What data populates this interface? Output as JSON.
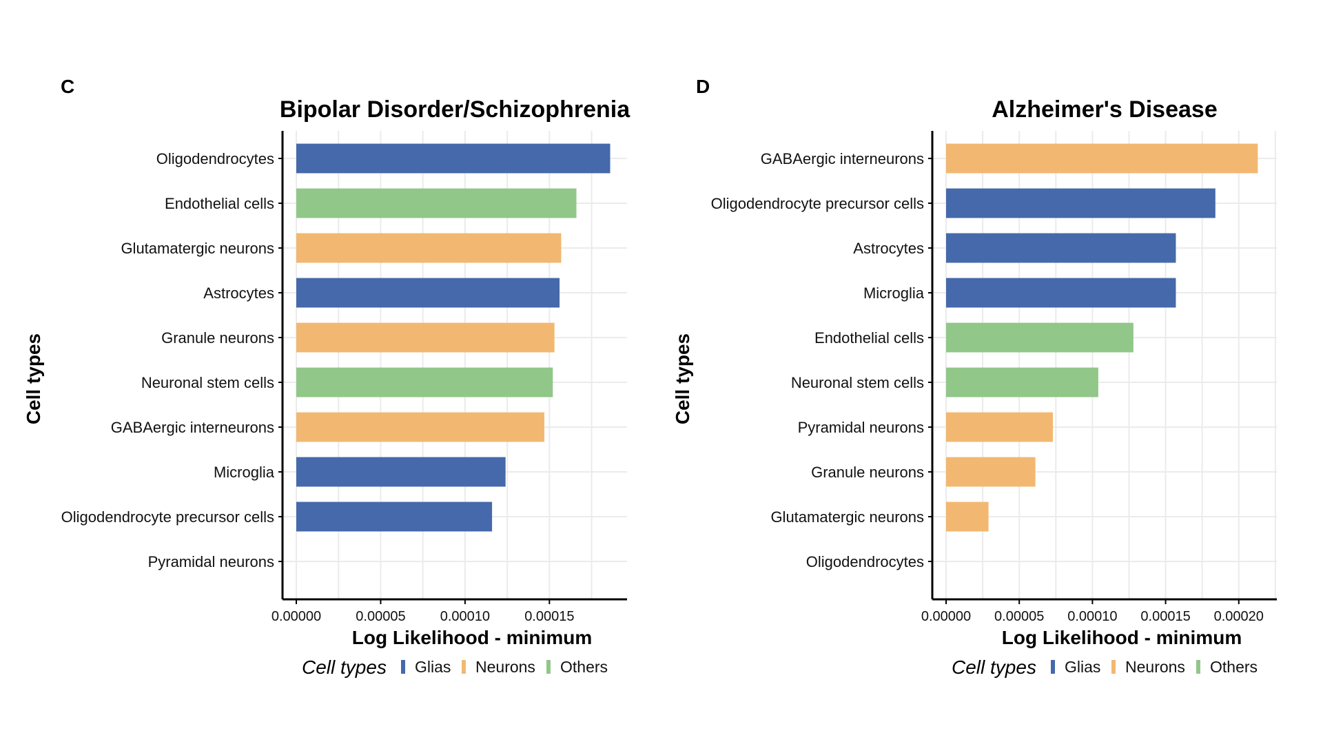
{
  "colors": {
    "Glias": "#4569AA",
    "Neurons": "#F2B872",
    "Others": "#91C788"
  },
  "chart_data": [
    {
      "panel": "C",
      "type": "bar",
      "orientation": "horizontal",
      "title": "Bipolar Disorder/Schizophrenia",
      "xlabel": "Log Likelihood - minimum",
      "ylabel": "Cell types",
      "xlim": [
        0,
        0.000196
      ],
      "xticks": [
        0,
        5e-05,
        0.0001,
        0.00015
      ],
      "xtick_labels": [
        "0.00000",
        "0.00005",
        "0.00010",
        "0.00015"
      ],
      "grid": true,
      "legend": {
        "title": "Cell types",
        "position": "bottom",
        "entries": [
          "Glias",
          "Neurons",
          "Others"
        ]
      },
      "categories": [
        "Oligodendrocytes",
        "Endothelial cells",
        "Glutamatergic neurons",
        "Astrocytes",
        "Granule neurons",
        "Neuronal stem cells",
        "GABAergic interneurons",
        "Microglia",
        "Oligodendrocyte precursor cells",
        "Pyramidal neurons"
      ],
      "values": [
        0.000186,
        0.000166,
        0.000157,
        0.000156,
        0.000153,
        0.000152,
        0.000147,
        0.000124,
        0.000116,
        0.0
      ],
      "groups": [
        "Glias",
        "Others",
        "Neurons",
        "Glias",
        "Neurons",
        "Others",
        "Neurons",
        "Glias",
        "Glias",
        "Neurons"
      ]
    },
    {
      "panel": "D",
      "type": "bar",
      "orientation": "horizontal",
      "title": "Alzheimer's Disease",
      "xlabel": "Log Likelihood - minimum",
      "ylabel": "Cell types",
      "xlim": [
        0,
        0.000226
      ],
      "xticks": [
        0,
        5e-05,
        0.0001,
        0.00015,
        0.0002
      ],
      "xtick_labels": [
        "0.00000",
        "0.00005",
        "0.00010",
        "0.00015",
        "0.00020"
      ],
      "grid": true,
      "legend": {
        "title": "Cell types",
        "position": "bottom",
        "entries": [
          "Glias",
          "Neurons",
          "Others"
        ]
      },
      "categories": [
        "GABAergic interneurons",
        "Oligodendrocyte precursor cells",
        "Astrocytes",
        "Microglia",
        "Endothelial cells",
        "Neuronal stem cells",
        "Pyramidal neurons",
        "Granule neurons",
        "Glutamatergic neurons",
        "Oligodendrocytes"
      ],
      "values": [
        0.000213,
        0.000184,
        0.000157,
        0.000157,
        0.000128,
        0.000104,
        7.3e-05,
        6.1e-05,
        2.9e-05,
        0.0
      ],
      "groups": [
        "Neurons",
        "Glias",
        "Glias",
        "Glias",
        "Others",
        "Others",
        "Neurons",
        "Neurons",
        "Neurons",
        "Glias"
      ]
    }
  ]
}
